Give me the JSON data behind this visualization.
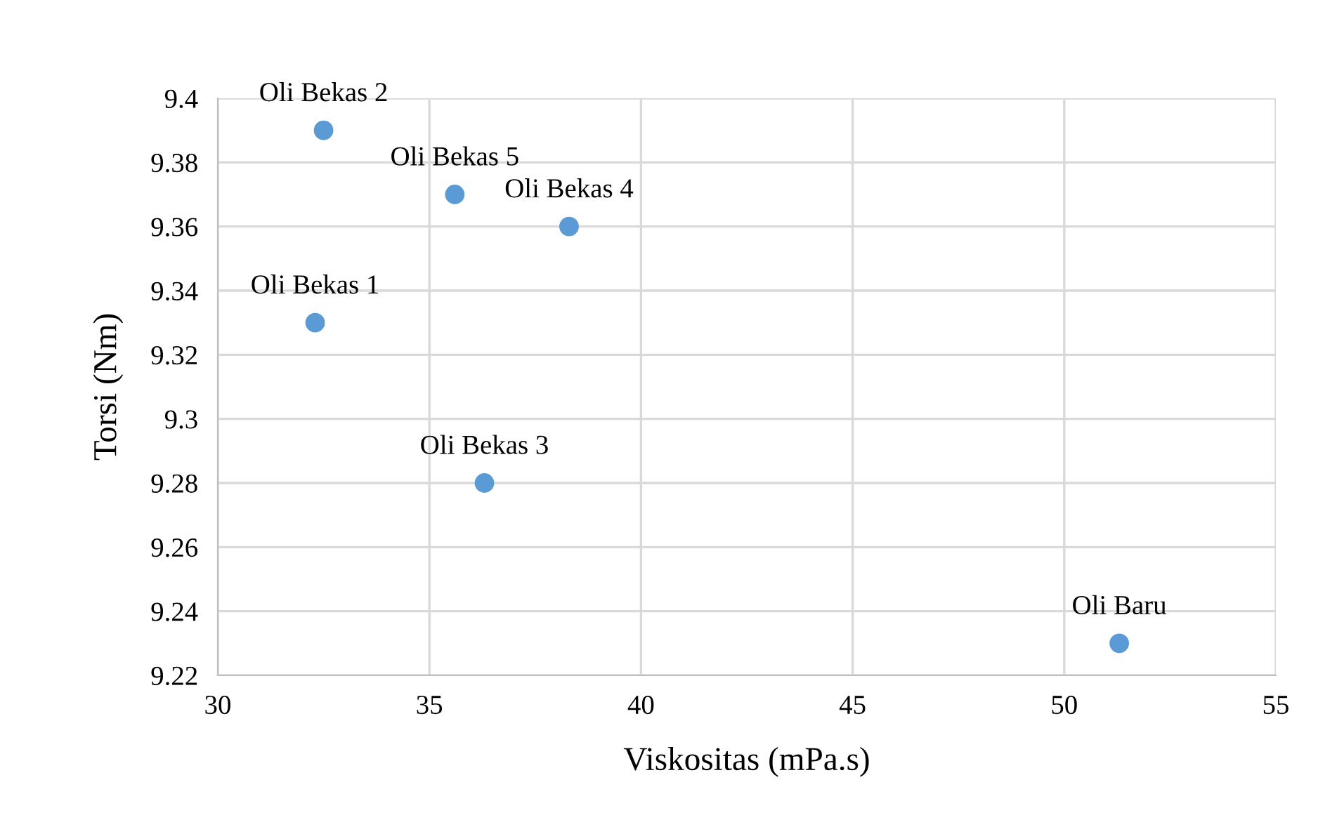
{
  "chart_data": {
    "type": "scatter",
    "xlabel": "Viskositas (mPa.s)",
    "ylabel": "Torsi (Nm)",
    "x": [
      51.3,
      32.3,
      32.5,
      36.3,
      38.3,
      35.6
    ],
    "series": [
      {
        "color": "#5b9bd5",
        "values": [
          9.23,
          9.33,
          9.39,
          9.28,
          9.36,
          9.37
        ]
      }
    ],
    "annotations": [
      {
        "text": "Oli Baru",
        "x": 51.3,
        "y": 9.23
      },
      {
        "text": "Oli Bekas 1",
        "x": 32.3,
        "y": 9.33
      },
      {
        "text": "Oli Bekas 2",
        "x": 32.5,
        "y": 9.39
      },
      {
        "text": "Oli Bekas 3",
        "x": 36.3,
        "y": 9.28
      },
      {
        "text": "Oli Bekas 4",
        "x": 38.3,
        "y": 9.36
      },
      {
        "text": "Oli Bekas 5",
        "x": 35.6,
        "y": 9.37
      }
    ],
    "xlim": [
      30,
      55
    ],
    "xticks": [
      30,
      35,
      40,
      45,
      50,
      55
    ],
    "ylim": [
      9.22,
      9.4
    ],
    "yticks": [
      {
        "value": 9.22,
        "label": "9.22"
      },
      {
        "value": 9.24,
        "label": "9.24"
      },
      {
        "value": 9.26,
        "label": "9.26"
      },
      {
        "value": 9.28,
        "label": "9.28"
      },
      {
        "value": 9.3,
        "label": "9.3"
      },
      {
        "value": 9.32,
        "label": "9.32"
      },
      {
        "value": 9.34,
        "label": "9.34"
      },
      {
        "value": 9.36,
        "label": "9.36"
      },
      {
        "value": 9.38,
        "label": "9.38"
      },
      {
        "value": 9.4,
        "label": "9.4"
      }
    ],
    "grid": true,
    "marker": "circle"
  }
}
